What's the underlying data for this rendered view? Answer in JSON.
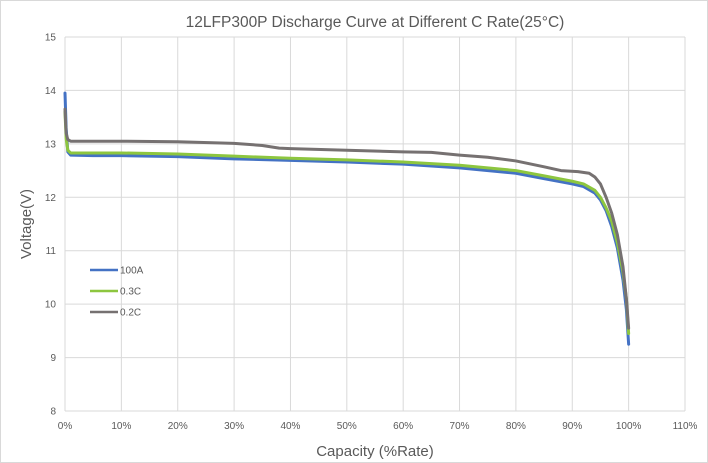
{
  "chart_data": {
    "type": "line",
    "title": "12LFP300P Discharge Curve at Different C Rate(25°C)",
    "xlabel": "Capacity (%Rate)",
    "ylabel": "Voltage(V)",
    "xlim": [
      0,
      110
    ],
    "ylim": [
      8,
      15
    ],
    "x_ticks": [
      0,
      10,
      20,
      30,
      40,
      50,
      60,
      70,
      80,
      90,
      100,
      110
    ],
    "x_tick_labels": [
      "0%",
      "10%",
      "20%",
      "30%",
      "40%",
      "50%",
      "60%",
      "70%",
      "80%",
      "90%",
      "100%",
      "110%"
    ],
    "y_ticks": [
      8,
      9,
      10,
      11,
      12,
      13,
      14,
      15
    ],
    "y_tick_labels": [
      "8",
      "9",
      "10",
      "11",
      "12",
      "13",
      "14",
      "15"
    ],
    "grid": true,
    "legend_position": "left",
    "series": [
      {
        "name": "100A",
        "color": "#4472c4",
        "points": [
          [
            0,
            13.95
          ],
          [
            0.2,
            13.3
          ],
          [
            0.5,
            12.85
          ],
          [
            1,
            12.79
          ],
          [
            5,
            12.78
          ],
          [
            10,
            12.78
          ],
          [
            20,
            12.76
          ],
          [
            30,
            12.72
          ],
          [
            40,
            12.69
          ],
          [
            50,
            12.66
          ],
          [
            60,
            12.62
          ],
          [
            70,
            12.55
          ],
          [
            80,
            12.45
          ],
          [
            85,
            12.35
          ],
          [
            90,
            12.25
          ],
          [
            92,
            12.2
          ],
          [
            94,
            12.08
          ],
          [
            95,
            11.95
          ],
          [
            96,
            11.75
          ],
          [
            97,
            11.45
          ],
          [
            98,
            11.05
          ],
          [
            99,
            10.45
          ],
          [
            99.6,
            9.9
          ],
          [
            100,
            9.25
          ]
        ]
      },
      {
        "name": "0.3C",
        "color": "#8dc63f",
        "points": [
          [
            0,
            13.6
          ],
          [
            0.2,
            13.1
          ],
          [
            0.5,
            12.88
          ],
          [
            1,
            12.83
          ],
          [
            5,
            12.83
          ],
          [
            10,
            12.83
          ],
          [
            20,
            12.81
          ],
          [
            30,
            12.77
          ],
          [
            40,
            12.73
          ],
          [
            50,
            12.7
          ],
          [
            60,
            12.66
          ],
          [
            70,
            12.6
          ],
          [
            80,
            12.5
          ],
          [
            85,
            12.4
          ],
          [
            90,
            12.3
          ],
          [
            92,
            12.25
          ],
          [
            94,
            12.13
          ],
          [
            95,
            12.0
          ],
          [
            96,
            11.8
          ],
          [
            97,
            11.55
          ],
          [
            98,
            11.15
          ],
          [
            99,
            10.6
          ],
          [
            99.6,
            10.1
          ],
          [
            100,
            9.45
          ]
        ]
      },
      {
        "name": "0.2C",
        "color": "#767171",
        "points": [
          [
            0,
            13.65
          ],
          [
            0.2,
            13.2
          ],
          [
            0.5,
            13.08
          ],
          [
            1,
            13.05
          ],
          [
            5,
            13.05
          ],
          [
            10,
            13.05
          ],
          [
            20,
            13.04
          ],
          [
            30,
            13.01
          ],
          [
            35,
            12.97
          ],
          [
            38,
            12.92
          ],
          [
            40,
            12.91
          ],
          [
            50,
            12.88
          ],
          [
            60,
            12.85
          ],
          [
            65,
            12.84
          ],
          [
            70,
            12.79
          ],
          [
            75,
            12.75
          ],
          [
            80,
            12.68
          ],
          [
            85,
            12.57
          ],
          [
            88,
            12.5
          ],
          [
            91,
            12.48
          ],
          [
            93,
            12.45
          ],
          [
            94,
            12.38
          ],
          [
            95,
            12.25
          ],
          [
            96,
            12.0
          ],
          [
            97,
            11.7
          ],
          [
            98,
            11.3
          ],
          [
            99,
            10.7
          ],
          [
            99.6,
            10.1
          ],
          [
            100,
            9.55
          ]
        ]
      }
    ]
  }
}
